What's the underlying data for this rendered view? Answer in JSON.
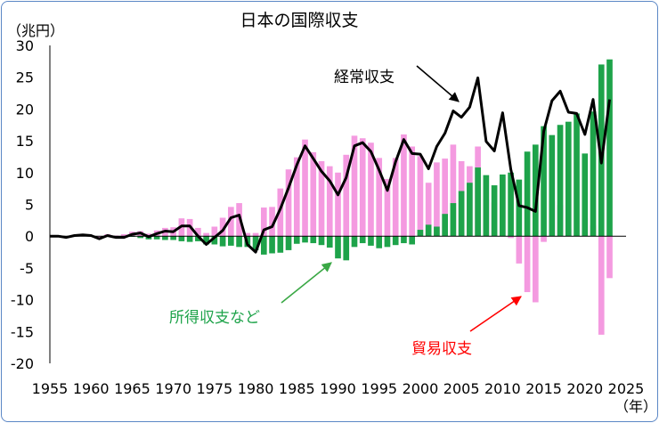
{
  "chart_data": {
    "type": "bar+line",
    "title": "日本の国際収支",
    "ylabel": "（兆円）",
    "xlabel": "（年）",
    "ylim": [
      -20,
      30
    ],
    "yticks": [
      30,
      25,
      20,
      15,
      10,
      5,
      0,
      -5,
      -10,
      -15,
      -20
    ],
    "xlim": [
      1955,
      2025
    ],
    "xticks": [
      1955,
      1960,
      1965,
      1970,
      1975,
      1980,
      1985,
      1990,
      1995,
      2000,
      2005,
      2010,
      2015,
      2020,
      2025
    ],
    "annotations": {
      "current_account": "経常収支",
      "income": "所得収支など",
      "trade": "貿易収支"
    },
    "colors": {
      "trade": "#f49ae0",
      "income": "#1ea34a",
      "current_account": "#000000",
      "income_arrow": "#3aa845",
      "trade_arrow": "#ff0000",
      "frame": "#5b87c6"
    },
    "years": [
      1955,
      1956,
      1957,
      1958,
      1959,
      1960,
      1961,
      1962,
      1963,
      1964,
      1965,
      1966,
      1967,
      1968,
      1969,
      1970,
      1971,
      1972,
      1973,
      1974,
      1975,
      1976,
      1977,
      1978,
      1979,
      1980,
      1981,
      1982,
      1983,
      1984,
      1985,
      1986,
      1987,
      1988,
      1989,
      1990,
      1991,
      1992,
      1993,
      1994,
      1995,
      1996,
      1997,
      1998,
      1999,
      2000,
      2001,
      2002,
      2003,
      2004,
      2005,
      2006,
      2007,
      2008,
      2009,
      2010,
      2011,
      2012,
      2013,
      2014,
      2015,
      2016,
      2017,
      2018,
      2019,
      2020,
      2021,
      2022,
      2023
    ],
    "series": [
      {
        "key": "trade",
        "values": [
          0,
          0,
          -0.1,
          0.2,
          0.2,
          0.1,
          -0.2,
          0.3,
          0.1,
          0.3,
          0.7,
          0.8,
          0.4,
          0.9,
          1.3,
          1.4,
          2.8,
          2.7,
          1.3,
          0.5,
          1.5,
          2.9,
          4.6,
          5.2,
          0.5,
          0.5,
          4.5,
          4.6,
          7.5,
          10.5,
          12.4,
          15.2,
          13.2,
          11.8,
          11.0,
          10.0,
          12.8,
          15.8,
          15.4,
          14.7,
          12.3,
          9.0,
          12.3,
          16.0,
          14.1,
          12.6,
          8.4,
          11.6,
          12.2,
          14.4,
          11.8,
          11.0,
          14.1,
          5.8,
          5.3,
          9.5,
          -0.3,
          -4.3,
          -8.8,
          -10.4,
          -0.9,
          5.5,
          4.9,
          1.1,
          0.2,
          2.8,
          1.7,
          -15.5,
          -6.6
        ]
      },
      {
        "key": "income",
        "values": [
          0,
          0,
          0,
          0,
          0,
          0,
          0,
          0,
          0,
          0,
          -0.1,
          -0.3,
          -0.5,
          -0.5,
          -0.6,
          -0.6,
          -0.8,
          -0.9,
          -0.8,
          -1.3,
          -1.3,
          -1.6,
          -1.5,
          -1.7,
          -1.7,
          -2.2,
          -2.9,
          -2.7,
          -2.6,
          -2.2,
          -1.2,
          -1.0,
          -1.1,
          -1.4,
          -1.8,
          -3.5,
          -3.8,
          -1.7,
          -1.1,
          -1.5,
          -1.9,
          -1.7,
          -1.4,
          -1.1,
          -1.3,
          1.0,
          1.8,
          1.5,
          3.5,
          5.2,
          7.1,
          8.4,
          10.8,
          9.6,
          8.0,
          9.7,
          10.0,
          8.9,
          13.3,
          14.4,
          17.3,
          15.9,
          17.5,
          18.0,
          19.3,
          13.0,
          19.6,
          27.0,
          27.8
        ]
      },
      {
        "key": "current_account",
        "values": [
          0,
          0,
          -0.2,
          0.1,
          0.2,
          0.1,
          -0.4,
          0.1,
          -0.2,
          -0.2,
          0.3,
          0.5,
          -0.1,
          0.4,
          0.8,
          0.7,
          1.6,
          1.6,
          0,
          -1.3,
          -0.2,
          0.9,
          2.9,
          3.3,
          -1.3,
          -2.5,
          1.0,
          1.5,
          4.3,
          7.6,
          11.2,
          14.2,
          12.2,
          10.2,
          8.7,
          6.5,
          9.2,
          14.2,
          14.7,
          13.3,
          10.4,
          7.2,
          11.7,
          15.2,
          13.0,
          12.9,
          10.6,
          14.1,
          16.2,
          19.7,
          18.7,
          20.3,
          24.9,
          14.9,
          13.4,
          19.4,
          10.5,
          4.8,
          4.5,
          3.9,
          16.5,
          21.3,
          22.8,
          19.5,
          19.3,
          16.0,
          21.5,
          11.5,
          21.5
        ]
      }
    ]
  }
}
